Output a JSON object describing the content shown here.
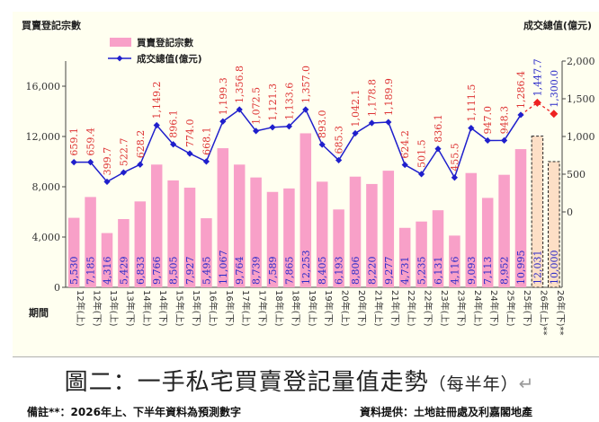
{
  "caption": {
    "main": "圖二：一手私宅買賣登記量值走勢",
    "sub": "（每半年）",
    "mark": "↵"
  },
  "footnote_left": "備註**：2026年上、下半年資料為預測數字",
  "footnote_right": "資料提供：土地註冊處及利嘉閣地產",
  "colors": {
    "bar": "#f8a0c8",
    "forecast_bar": "#fddfc6",
    "line": "#1f1fcc",
    "value_label": "#dd3333",
    "forecast_point": "#ee2222",
    "volume_label": "#2a2ac8"
  },
  "chart_data": {
    "type": "bar",
    "title": "",
    "ylabel_left": "買賣登記宗數",
    "ylabel_right": "成交總值(億元)",
    "xlabel": "期間",
    "ylim_left": [
      0,
      18000
    ],
    "ylim_right": [
      -1000,
      2000
    ],
    "yticks_left": [
      "0",
      "4,000",
      "8,000",
      "12,000",
      "16,000"
    ],
    "yticks_right": [
      "0",
      "500",
      "1,000",
      "1,500",
      "2,000"
    ],
    "grid": false,
    "legend_position": "top-left",
    "categories": [
      "12年(上)",
      "12年(下)",
      "13年(上)",
      "13年(下)",
      "14年(上)",
      "14年(下)",
      "15年(上)",
      "15年(下)",
      "16年(上)",
      "16年(下)",
      "17年(上)",
      "17年(下)",
      "18年(上)",
      "18年(下)",
      "19年(上)",
      "19年(下)",
      "20年(上)",
      "20年(下)",
      "21年(上)",
      "21年(下)",
      "22年(上)",
      "22年(下)",
      "23年(上)",
      "23年(下)",
      "24年(上)",
      "24年(下)",
      "25年(上)",
      "25年(下)",
      "26年(上)**",
      "26年(下)**"
    ],
    "series": [
      {
        "name": "買賣登記宗數",
        "kind": "bar",
        "values": [
          5530,
          7185,
          4316,
          5429,
          6833,
          9766,
          8505,
          7927,
          5495,
          11067,
          9764,
          8739,
          7589,
          7865,
          12253,
          8405,
          6193,
          8806,
          8220,
          9277,
          4731,
          5235,
          6131,
          4116,
          9093,
          7113,
          8952,
          10995,
          12031,
          10000
        ],
        "labels": [
          "5,530",
          "7,185",
          "4,316",
          "5,429",
          "6,833",
          "9,766",
          "8,505",
          "7,927",
          "5,495",
          "11,067",
          "9,764",
          "8,739",
          "7,589",
          "7,865",
          "12,253",
          "8,405",
          "6,193",
          "8,806",
          "8,220",
          "9,277",
          "4,731",
          "5,235",
          "6,131",
          "4,116",
          "9,093",
          "7,113",
          "8,952",
          "10,995",
          "12,031",
          "10,000"
        ]
      },
      {
        "name": "成交總值(億元)",
        "kind": "line",
        "values": [
          659.1,
          659.4,
          399.7,
          522.7,
          628.2,
          1149.2,
          896.1,
          774.0,
          668.1,
          1199.3,
          1356.8,
          1072.5,
          1121.3,
          1133.6,
          1357.0,
          893.0,
          685.3,
          1042.1,
          1178.8,
          1189.9,
          624.2,
          501.5,
          836.1,
          455.5,
          1111.5,
          947.0,
          948.3,
          1286.4,
          1447.7,
          1300.0
        ],
        "labels": [
          "659.1",
          "659.4",
          "399.7",
          "522.7",
          "628.2",
          "1,149.2",
          "896.1",
          "774.0",
          "668.1",
          "1,199.3",
          "1,356.8",
          "1,072.5",
          "1,121.3",
          "1,133.6",
          "1,357.0",
          "893.0",
          "685.3",
          "1,042.1",
          "1,178.8",
          "1,189.9",
          "624.2",
          "501.5",
          "836.1",
          "455.5",
          "1,111.5",
          "947.0",
          "948.3",
          "1,286.4",
          "1,447.7",
          "1,300.0"
        ]
      }
    ],
    "forecast_from_index": 28
  }
}
